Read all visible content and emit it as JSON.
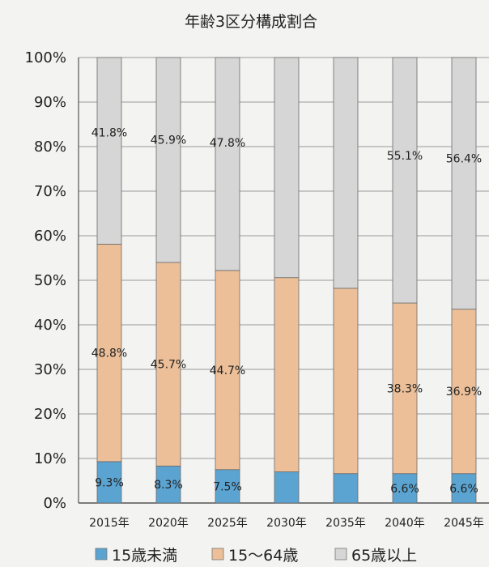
{
  "chart_data": {
    "type": "bar",
    "stacked": true,
    "title": "年齢3区分構成割合",
    "categories": [
      "2015年",
      "2020年",
      "2025年",
      "2030年",
      "2035年",
      "2040年",
      "2045年"
    ],
    "y_ticks": [
      "0%",
      "10%",
      "20%",
      "30%",
      "40%",
      "50%",
      "60%",
      "70%",
      "80%",
      "90%",
      "100%"
    ],
    "ylim": [
      0,
      100
    ],
    "grid": "horizontal",
    "legend_position": "bottom",
    "series": [
      {
        "name": "15歳未満",
        "color": "#5ba4d1",
        "values": [
          9.3,
          8.3,
          7.5,
          7.0,
          6.6,
          6.6,
          6.6
        ],
        "labels": [
          "9.3%",
          "8.3%",
          "7.5%",
          "",
          "",
          "6.6%",
          "6.6%"
        ]
      },
      {
        "name": "15～64歳",
        "color": "#ecbf98",
        "values": [
          48.8,
          45.7,
          44.7,
          43.6,
          41.6,
          38.3,
          36.9
        ],
        "labels": [
          "48.8%",
          "45.7%",
          "44.7%",
          "",
          "",
          "38.3%",
          "36.9%"
        ]
      },
      {
        "name": "65歳以上",
        "color": "#d6d6d6",
        "values": [
          41.8,
          45.9,
          47.8,
          49.4,
          51.8,
          55.1,
          56.4
        ],
        "labels": [
          "41.8%",
          "45.9%",
          "47.8%",
          "",
          "",
          "55.1%",
          "56.4%"
        ]
      }
    ]
  }
}
